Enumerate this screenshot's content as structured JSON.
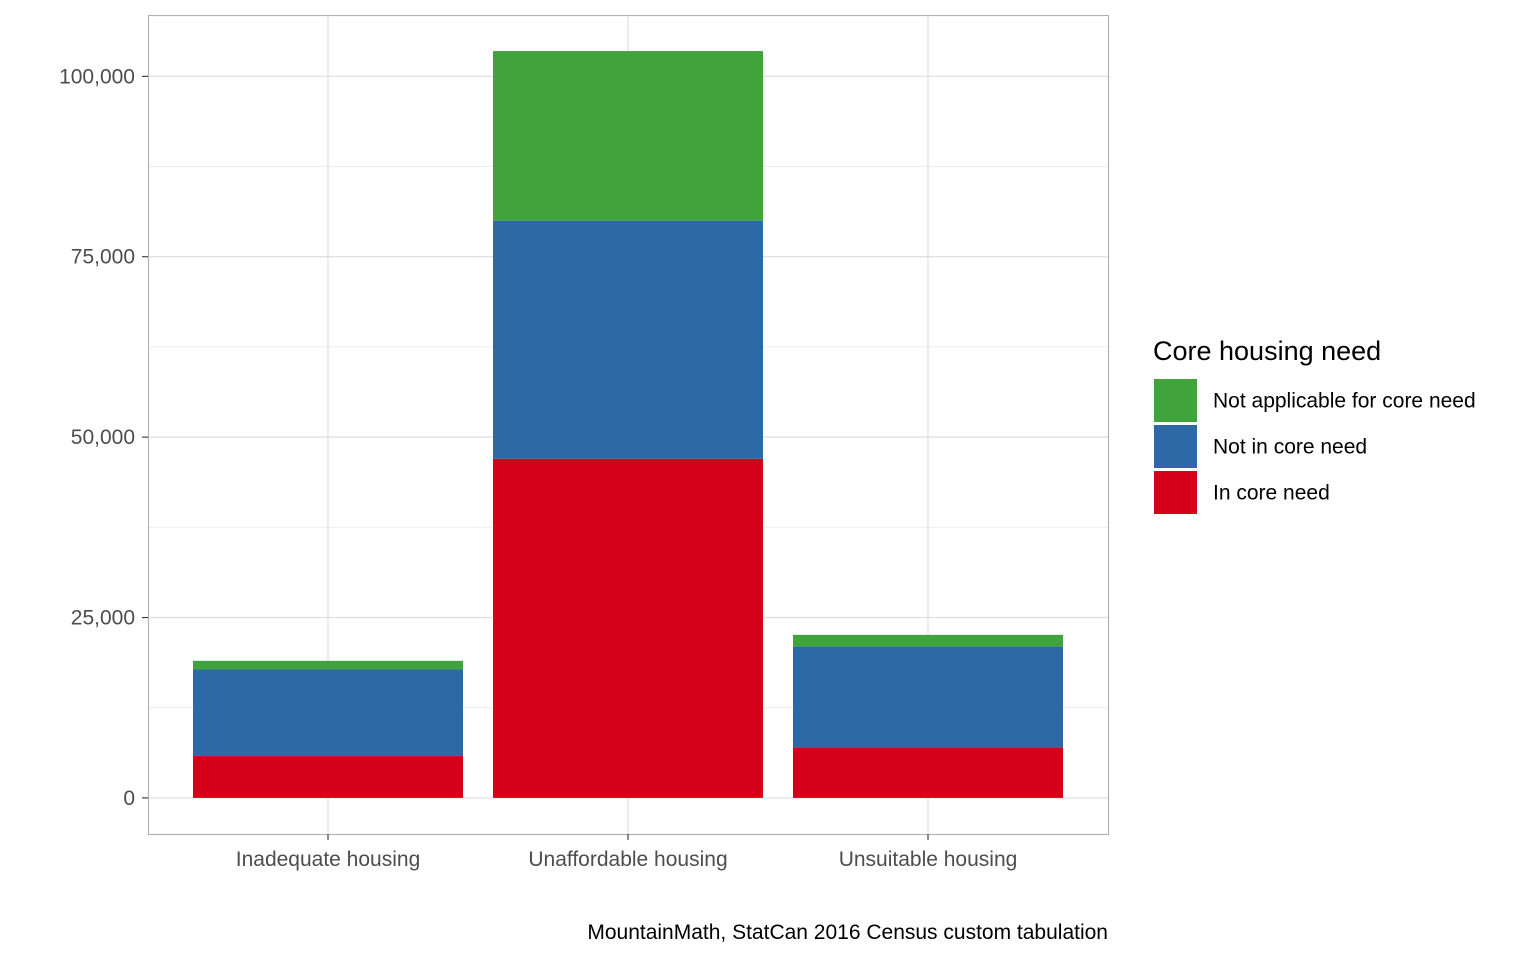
{
  "chart_data": {
    "type": "bar",
    "stacked": true,
    "categories": [
      "Inadequate housing",
      "Unaffordable housing",
      "Unsuitable housing"
    ],
    "series": [
      {
        "name": "In core need",
        "color": "#d7001a",
        "values": [
          5800,
          47000,
          7000
        ]
      },
      {
        "name": "Not in core need",
        "color": "#2d69a7",
        "values": [
          12000,
          33000,
          14000
        ]
      },
      {
        "name": "Not applicable for core need",
        "color": "#41a33b",
        "values": [
          1200,
          23500,
          1600
        ]
      }
    ],
    "ylim": [
      -5000,
      108500
    ],
    "yticks": [
      0,
      25000,
      50000,
      75000,
      100000
    ],
    "ytick_labels": [
      "0",
      "25,000",
      "50,000",
      "75,000",
      "100,000"
    ],
    "xlabel": "",
    "ylabel": "",
    "grid": true,
    "legend": {
      "title": "Core housing need",
      "placement": "right",
      "entries": [
        "Not applicable for core need",
        "Not in core need",
        "In core need"
      ]
    },
    "caption": "MountainMath, StatCan 2016 Census custom tabulation"
  }
}
